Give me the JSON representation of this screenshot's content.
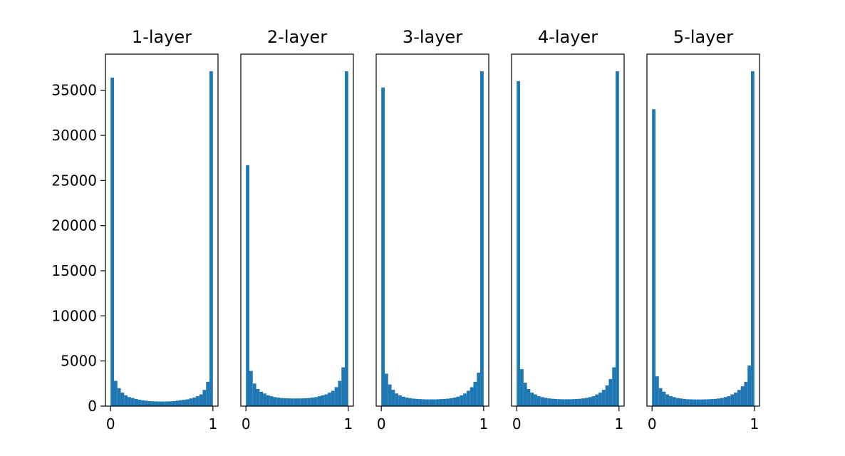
{
  "chart_data": [
    {
      "type": "histogram",
      "title": "1-layer",
      "color": "#1f77b4",
      "bins": [
        0,
        0.0333,
        0.0667,
        0.1,
        0.1333,
        0.1667,
        0.2,
        0.2333,
        0.2667,
        0.3,
        0.3333,
        0.3667,
        0.4,
        0.4333,
        0.4667,
        0.5,
        0.5333,
        0.5667,
        0.6,
        0.6333,
        0.6667,
        0.7,
        0.7333,
        0.7667,
        0.8,
        0.8333,
        0.8667,
        0.9,
        0.9333,
        0.9667,
        1
      ],
      "values": [
        36400,
        2800,
        2000,
        1500,
        1200,
        1000,
        900,
        800,
        700,
        650,
        600,
        550,
        530,
        520,
        510,
        510,
        520,
        530,
        550,
        600,
        650,
        700,
        750,
        850,
        950,
        1100,
        1300,
        1800,
        2700,
        37100
      ],
      "xlim": [
        -0.05,
        1.05
      ],
      "xticks": [
        0,
        1
      ],
      "ylim": [
        0,
        39000
      ],
      "yticks": [
        0,
        5000,
        10000,
        15000,
        20000,
        25000,
        30000,
        35000
      ]
    },
    {
      "type": "histogram",
      "title": "2-layer",
      "color": "#1f77b4",
      "bins": [
        0,
        0.0333,
        0.0667,
        0.1,
        0.1333,
        0.1667,
        0.2,
        0.2333,
        0.2667,
        0.3,
        0.3333,
        0.3667,
        0.4,
        0.4333,
        0.4667,
        0.5,
        0.5333,
        0.5667,
        0.6,
        0.6333,
        0.6667,
        0.7,
        0.7333,
        0.7667,
        0.8,
        0.8333,
        0.8667,
        0.9,
        0.9333,
        0.9667,
        1
      ],
      "values": [
        26700,
        3900,
        2500,
        1900,
        1600,
        1400,
        1200,
        1100,
        1000,
        950,
        900,
        880,
        860,
        850,
        850,
        850,
        860,
        880,
        900,
        950,
        1000,
        1100,
        1200,
        1300,
        1500,
        1700,
        2100,
        2800,
        4300,
        37100
      ],
      "xlim": [
        -0.05,
        1.05
      ],
      "xticks": [
        0,
        1
      ],
      "ylim": [
        0,
        39000
      ]
    },
    {
      "type": "histogram",
      "title": "3-layer",
      "color": "#1f77b4",
      "bins": [
        0,
        0.0333,
        0.0667,
        0.1,
        0.1333,
        0.1667,
        0.2,
        0.2333,
        0.2667,
        0.3,
        0.3333,
        0.3667,
        0.4,
        0.4333,
        0.4667,
        0.5,
        0.5333,
        0.5667,
        0.6,
        0.6333,
        0.6667,
        0.7,
        0.7333,
        0.7667,
        0.8,
        0.8333,
        0.8667,
        0.9,
        0.9333,
        0.9667,
        1
      ],
      "values": [
        35300,
        3600,
        2400,
        1800,
        1400,
        1200,
        1050,
        950,
        880,
        830,
        800,
        780,
        760,
        750,
        750,
        750,
        760,
        780,
        800,
        830,
        880,
        950,
        1050,
        1200,
        1400,
        1700,
        2100,
        2700,
        3700,
        37100
      ],
      "xlim": [
        -0.05,
        1.05
      ],
      "xticks": [
        0,
        1
      ],
      "ylim": [
        0,
        39000
      ]
    },
    {
      "type": "histogram",
      "title": "4-layer",
      "color": "#1f77b4",
      "bins": [
        0,
        0.0333,
        0.0667,
        0.1,
        0.1333,
        0.1667,
        0.2,
        0.2333,
        0.2667,
        0.3,
        0.3333,
        0.3667,
        0.4,
        0.4333,
        0.4667,
        0.5,
        0.5333,
        0.5667,
        0.6,
        0.6333,
        0.6667,
        0.7,
        0.7333,
        0.7667,
        0.8,
        0.8333,
        0.8667,
        0.9,
        0.9333,
        0.9667,
        1
      ],
      "values": [
        36000,
        4100,
        2600,
        1900,
        1500,
        1300,
        1100,
        1000,
        920,
        860,
        820,
        790,
        770,
        760,
        760,
        760,
        770,
        790,
        820,
        860,
        920,
        1000,
        1100,
        1300,
        1500,
        1800,
        2300,
        3000,
        4300,
        37100
      ],
      "xlim": [
        -0.05,
        1.05
      ],
      "xticks": [
        0,
        1
      ],
      "ylim": [
        0,
        39000
      ]
    },
    {
      "type": "histogram",
      "title": "5-layer",
      "color": "#1f77b4",
      "bins": [
        0,
        0.0333,
        0.0667,
        0.1,
        0.1333,
        0.1667,
        0.2,
        0.2333,
        0.2667,
        0.3,
        0.3333,
        0.3667,
        0.4,
        0.4333,
        0.4667,
        0.5,
        0.5333,
        0.5667,
        0.6,
        0.6333,
        0.6667,
        0.7,
        0.7333,
        0.7667,
        0.8,
        0.8333,
        0.8667,
        0.9,
        0.9333,
        0.9667,
        1
      ],
      "values": [
        32900,
        3300,
        2000,
        1600,
        1300,
        1100,
        1000,
        900,
        850,
        800,
        760,
        750,
        740,
        740,
        740,
        750,
        760,
        780,
        800,
        850,
        900,
        1000,
        1100,
        1300,
        1500,
        1800,
        2200,
        2700,
        4500,
        37100
      ],
      "xlim": [
        -0.05,
        1.05
      ],
      "xticks": [
        0,
        1
      ],
      "ylim": [
        0,
        39000
      ]
    }
  ]
}
